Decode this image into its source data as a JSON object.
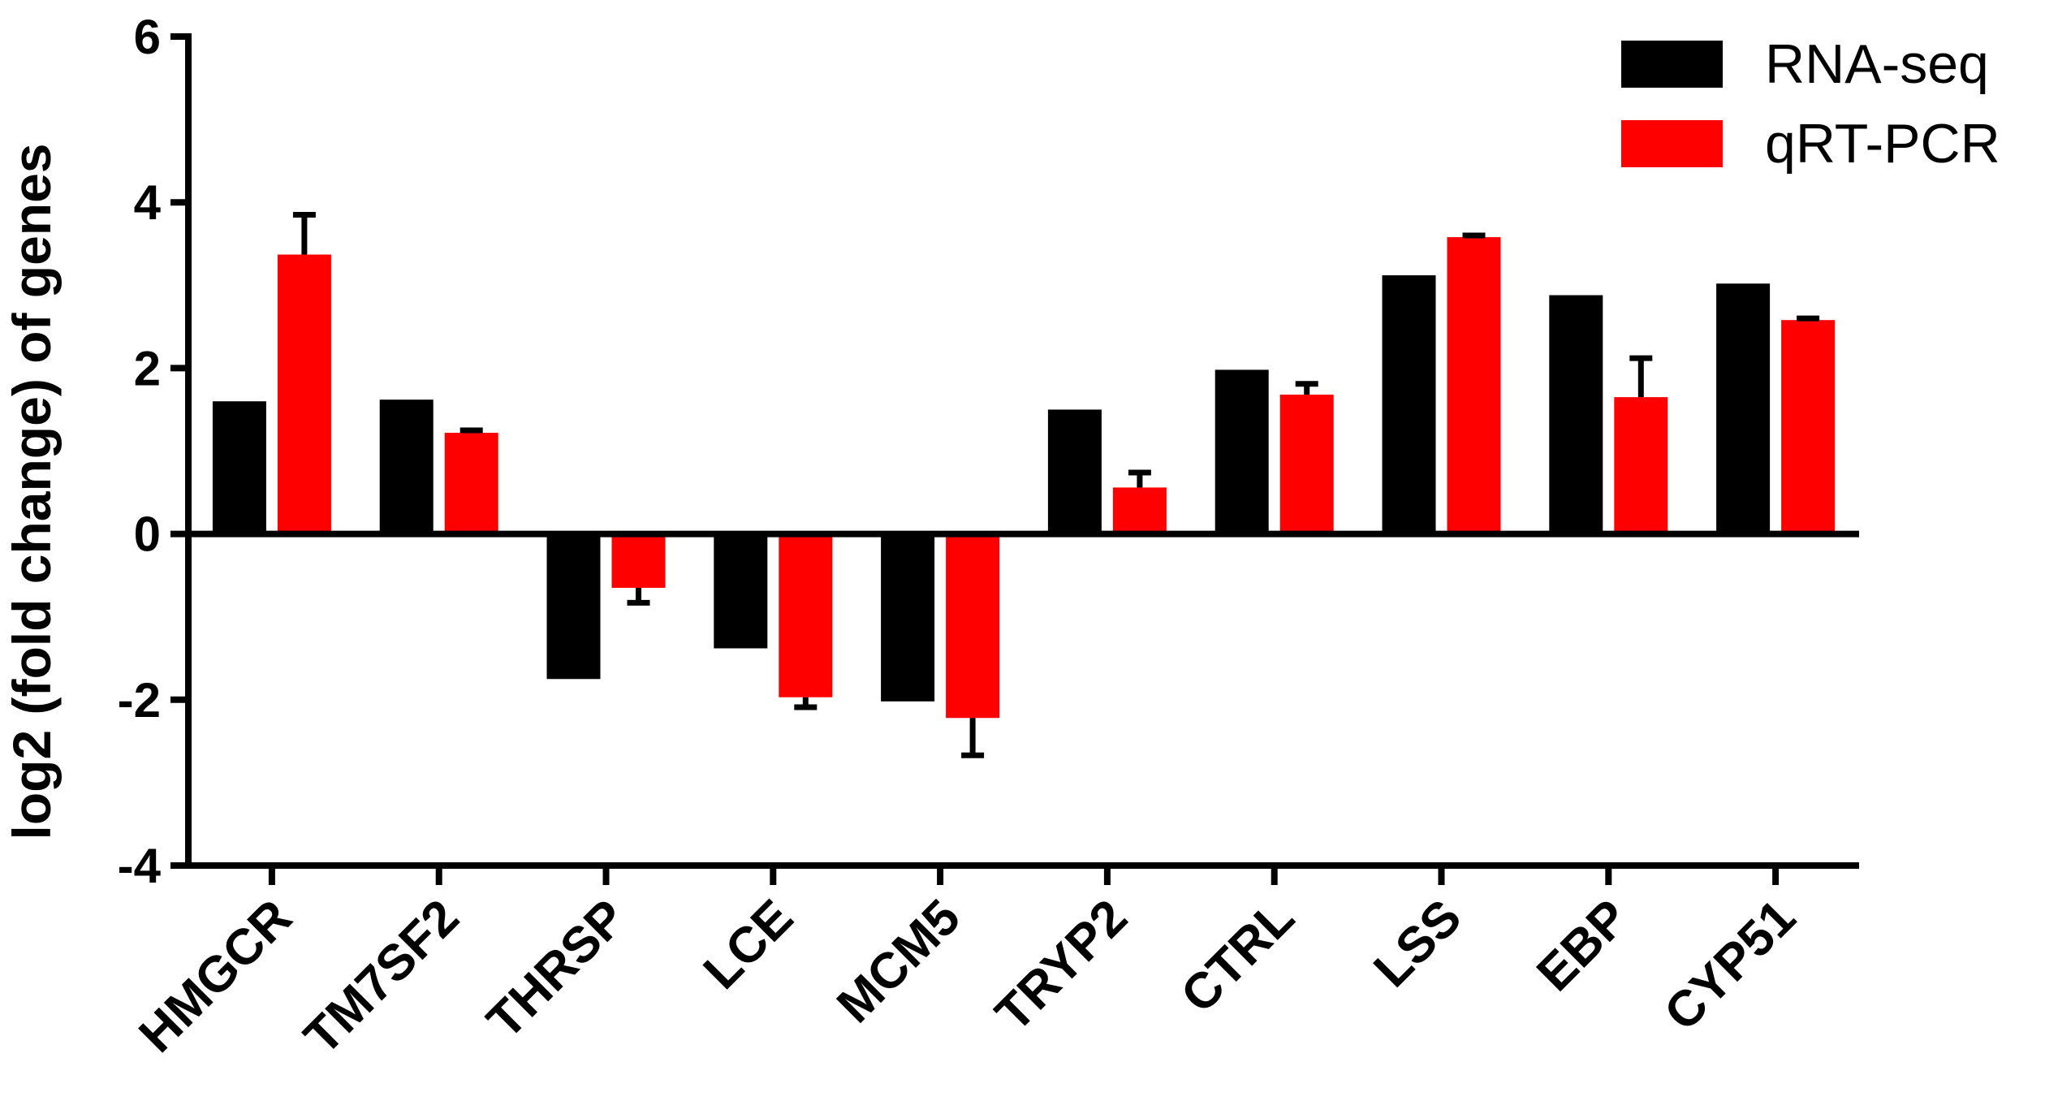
{
  "chart_data": {
    "type": "bar",
    "title": "",
    "xlabel": "",
    "ylabel": "log2 (fold change) of genes",
    "ylim": [
      -4,
      6
    ],
    "yticks": [
      6,
      4,
      2,
      0,
      -2,
      -4
    ],
    "ytick_labels": [
      "6",
      "4",
      "2",
      "0",
      "-2",
      "-4"
    ],
    "grid": false,
    "legend_position": "top-right",
    "categories": [
      "HMGCR",
      "TM7SF2",
      "THRSP",
      "LCE",
      "MCM5",
      "TRYP2",
      "CTRL",
      "LSS",
      "EBP",
      "CYP51"
    ],
    "series": [
      {
        "name": "RNA-seq",
        "color": "#000000",
        "values": [
          1.6,
          1.62,
          -1.75,
          -1.38,
          -2.02,
          1.5,
          1.98,
          3.12,
          2.88,
          3.02
        ],
        "errors": [
          null,
          null,
          null,
          null,
          null,
          null,
          null,
          null,
          null,
          null
        ]
      },
      {
        "name": "qRT-PCR",
        "color": "#ff0000",
        "values": [
          3.37,
          1.22,
          -0.65,
          -1.97,
          -2.22,
          0.56,
          1.68,
          3.58,
          1.65,
          2.58
        ],
        "errors": [
          0.48,
          0.03,
          0.18,
          0.12,
          0.45,
          0.18,
          0.13,
          0.02,
          0.47,
          0.02
        ]
      }
    ]
  }
}
